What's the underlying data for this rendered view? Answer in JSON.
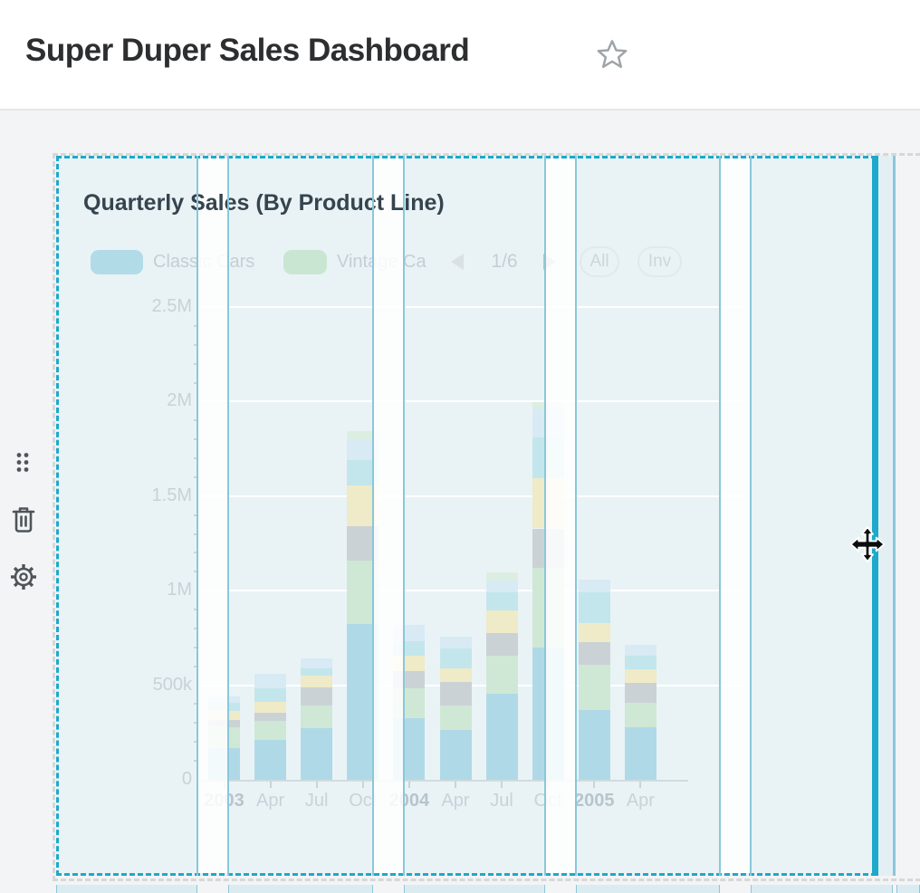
{
  "header": {
    "title": "Super Duper Sales Dashboard"
  },
  "widget": {
    "title": "Quarterly Sales (By Product Line)",
    "legend": {
      "items": [
        {
          "label": "Classic Cars",
          "color": "#b2dbe8"
        },
        {
          "label": "Vintage Ca",
          "color": "#c9e6d2"
        }
      ],
      "pager": {
        "page": "1/6"
      },
      "buttons": {
        "all": "All",
        "invert": "Inv"
      }
    }
  },
  "chart_data": {
    "type": "bar",
    "stacked": true,
    "title": "Quarterly Sales (By Product Line)",
    "categories": [
      "2003",
      "Apr",
      "Jul",
      "Oct",
      "2004",
      "Apr",
      "Jul",
      "Oct",
      "2005",
      "Apr"
    ],
    "bold_categories": [
      "2003",
      "2004",
      "2005"
    ],
    "series": [
      {
        "name": "Classic Cars",
        "color": "#b0d9e7",
        "values": [
          167000,
          210000,
          273000,
          823000,
          325000,
          263000,
          455000,
          698000,
          368000,
          278000
        ]
      },
      {
        "name": "Vintage Ca",
        "color": "#cfe8d5",
        "values": [
          110000,
          100000,
          120000,
          335000,
          158000,
          129000,
          201000,
          421000,
          239000,
          129000
        ]
      },
      {
        "name": "",
        "color": "#cbd2d6",
        "values": [
          38000,
          43000,
          96000,
          182000,
          91000,
          124000,
          120000,
          210000,
          120000,
          105000
        ]
      },
      {
        "name": "",
        "color": "#efeac7",
        "values": [
          48000,
          57000,
          62000,
          215000,
          81000,
          72000,
          120000,
          268000,
          100000,
          72000
        ]
      },
      {
        "name": "",
        "color": "#c2e6ec",
        "values": [
          46000,
          72000,
          38000,
          134000,
          77000,
          105000,
          96000,
          215000,
          163000,
          72000
        ]
      },
      {
        "name": "",
        "color": "#d8eaf4",
        "values": [
          31000,
          77000,
          53000,
          105000,
          86000,
          62000,
          62000,
          153000,
          67000,
          57000
        ]
      },
      {
        "name": "",
        "color": "#dceee1",
        "values": [
          0,
          0,
          0,
          48000,
          0,
          0,
          43000,
          33000,
          0,
          0
        ]
      }
    ],
    "y_axis": {
      "ticks": [
        {
          "value": 0,
          "label": "0"
        },
        {
          "value": 500000,
          "label": "500k"
        },
        {
          "value": 1000000,
          "label": "1M"
        },
        {
          "value": 1500000,
          "label": "1.5M"
        },
        {
          "value": 2000000,
          "label": "2M"
        },
        {
          "value": 2500000,
          "label": "2.5M"
        }
      ],
      "minor_tick_step": 100000,
      "range": [
        0,
        2500000
      ]
    },
    "legend_pagination": "1/6",
    "legend_position": "top",
    "grid": "horizontal gridlines every 500k"
  },
  "colors": {
    "selection_teal": "#1ea9cb",
    "grid_line_teal": "#8ac7da",
    "widget_tint": "#e9f3f6",
    "ghost_dash_gray": "#d6d8d9",
    "icon_gray": "#4e5459"
  }
}
